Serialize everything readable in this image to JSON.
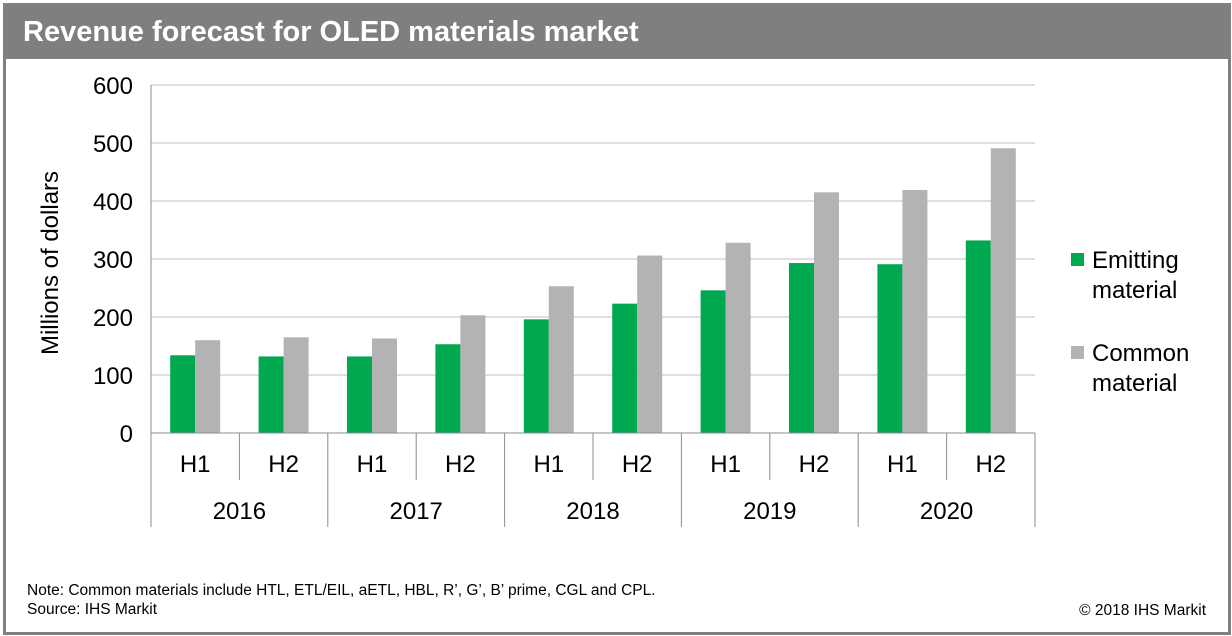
{
  "title": "Revenue forecast for OLED materials market",
  "chart_data": {
    "type": "bar",
    "ylabel": "Millions of dollars",
    "ylim": [
      0,
      600
    ],
    "yticks": [
      0,
      100,
      200,
      300,
      400,
      500,
      600
    ],
    "grid": true,
    "legend_position": "right",
    "categories": [
      "H1",
      "H2",
      "H1",
      "H2",
      "H1",
      "H2",
      "H1",
      "H2",
      "H1",
      "H2"
    ],
    "groups": [
      "2016",
      "2017",
      "2018",
      "2019",
      "2020"
    ],
    "series": [
      {
        "name": "Emitting material",
        "color": "#00a84f",
        "values": [
          134,
          132,
          132,
          153,
          196,
          223,
          246,
          293,
          291,
          332
        ]
      },
      {
        "name": "Common material",
        "color": "#b3b3b3",
        "values": [
          160,
          165,
          163,
          203,
          253,
          306,
          328,
          415,
          419,
          491
        ]
      }
    ]
  },
  "legend": [
    {
      "label": "Emitting material",
      "color": "#00a84f"
    },
    {
      "label": "Common material",
      "color": "#b3b3b3"
    }
  ],
  "footer": {
    "note": "Note: Common materials include HTL, ETL/EIL, aETL, HBL, R’, G’, B’ prime, CGL and CPL.",
    "source": "Source: IHS Markit",
    "copyright": "© 2018 IHS Markit"
  }
}
